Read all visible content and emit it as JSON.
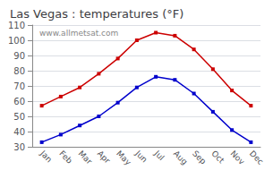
{
  "chart_data": {
    "type": "line",
    "title": "Las Vegas : temperatures (°F)",
    "categories": [
      "Jan",
      "Feb",
      "Mar",
      "Apr",
      "May",
      "Jun",
      "Jul",
      "Aug",
      "Sep",
      "Oct",
      "Nov",
      "Dec"
    ],
    "series": [
      {
        "color": "#cc0000",
        "values": [
          57,
          63,
          69,
          78,
          88,
          100,
          105,
          103,
          94,
          81,
          67,
          57
        ],
        "marker": "square",
        "line_style": "solid"
      },
      {
        "color": "#0000cc",
        "values": [
          33,
          38,
          44,
          50,
          59,
          69,
          76,
          74,
          65,
          53,
          41,
          33
        ],
        "marker": "square",
        "line_style": "solid"
      }
    ],
    "ylim": [
      30,
      110
    ],
    "yticks": [
      30,
      40,
      50,
      60,
      70,
      80,
      90,
      100,
      110
    ],
    "grid": true,
    "annotations": [
      "www.allmetsat.com"
    ]
  }
}
